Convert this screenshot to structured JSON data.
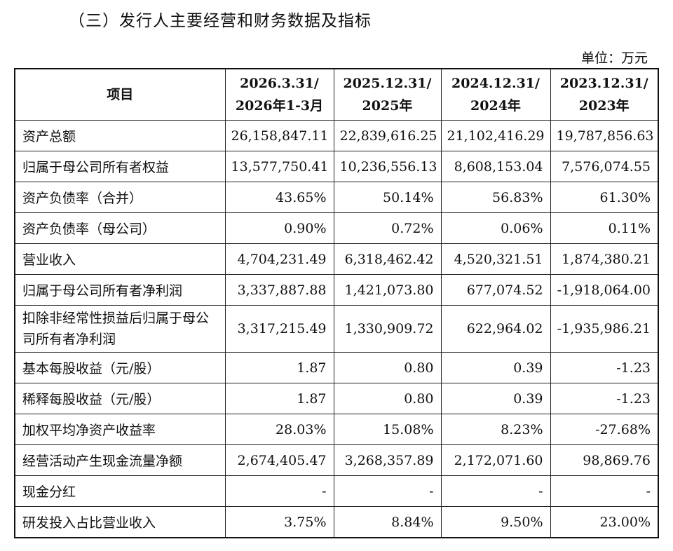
{
  "title": "（三）发行人主要经营和财务数据及指标",
  "unit": "单位：万元",
  "headers": {
    "item": "项目",
    "cols": [
      {
        "line1": "2026.3.31/",
        "line2": "2026年1-3月"
      },
      {
        "line1": "2025.12.31/",
        "line2": "2025年"
      },
      {
        "line1": "2024.12.31/",
        "line2": "2024年"
      },
      {
        "line1": "2023.12.31/",
        "line2": "2023年"
      }
    ]
  },
  "rows": [
    {
      "label": "资产总额",
      "values": [
        "26,158,847.11",
        "22,839,616.25",
        "21,102,416.29",
        "19,787,856.63"
      ]
    },
    {
      "label": "归属于母公司所有者权益",
      "values": [
        "13,577,750.41",
        "10,236,556.13",
        "8,608,153.04",
        "7,576,074.55"
      ]
    },
    {
      "label": "资产负债率（合并）",
      "values": [
        "43.65%",
        "50.14%",
        "56.83%",
        "61.30%"
      ]
    },
    {
      "label": "资产负债率（母公司）",
      "values": [
        "0.90%",
        "0.72%",
        "0.06%",
        "0.11%"
      ]
    },
    {
      "label": "营业收入",
      "values": [
        "4,704,231.49",
        "6,318,462.42",
        "4,520,321.51",
        "1,874,380.21"
      ]
    },
    {
      "label": "归属于母公司所有者净利润",
      "values": [
        "3,337,887.88",
        "1,421,073.80",
        "677,074.52",
        "-1,918,064.00"
      ]
    },
    {
      "label": "扣除非经常性损益后归属于母公司所有者净利润",
      "values": [
        "3,317,215.49",
        "1,330,909.72",
        "622,964.02",
        "-1,935,986.21"
      ]
    },
    {
      "label": "基本每股收益（元/股）",
      "values": [
        "1.87",
        "0.80",
        "0.39",
        "-1.23"
      ]
    },
    {
      "label": "稀释每股收益（元/股）",
      "values": [
        "1.87",
        "0.80",
        "0.39",
        "-1.23"
      ]
    },
    {
      "label": "加权平均净资产收益率",
      "values": [
        "28.03%",
        "15.08%",
        "8.23%",
        "-27.68%"
      ]
    },
    {
      "label": "经营活动产生现金流量净额",
      "values": [
        "2,674,405.47",
        "3,268,357.89",
        "2,172,071.60",
        "98,869.76"
      ]
    },
    {
      "label": "现金分红",
      "values": [
        "-",
        "-",
        "-",
        "-"
      ]
    },
    {
      "label": "研发投入占比营业收入",
      "values": [
        "3.75%",
        "8.84%",
        "9.50%",
        "23.00%"
      ]
    }
  ]
}
